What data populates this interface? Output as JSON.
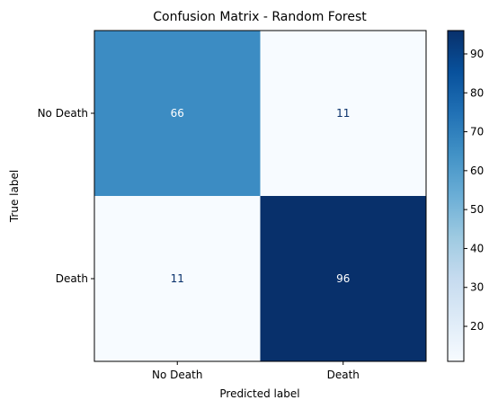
{
  "chart_data": {
    "type": "heatmap",
    "title": "Confusion Matrix - Random Forest",
    "xlabel": "Predicted label",
    "ylabel": "True label",
    "x_categories": [
      "No Death",
      "Death"
    ],
    "y_categories": [
      "No Death",
      "Death"
    ],
    "values": [
      [
        66,
        11
      ],
      [
        11,
        96
      ]
    ],
    "colormap": "Blues",
    "colorbar": {
      "min": 11,
      "max": 96,
      "ticks": [
        20,
        30,
        40,
        50,
        60,
        70,
        80,
        90
      ]
    },
    "text_color_dark_bg": "#ffffff",
    "text_color_light_bg": "#08306b"
  }
}
